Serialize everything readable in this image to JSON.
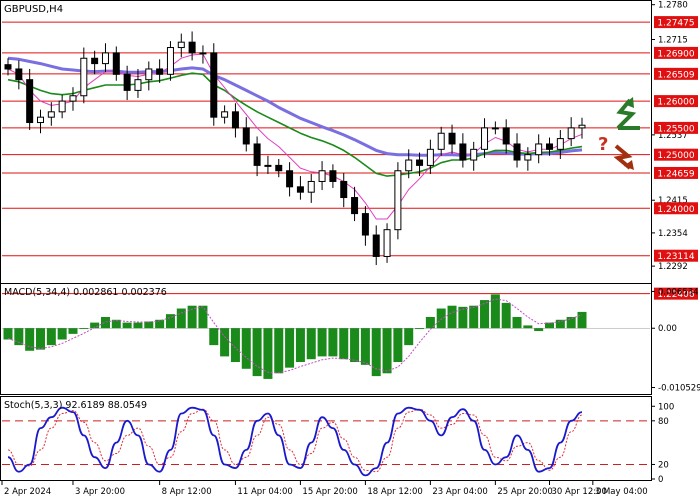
{
  "chart_data": [
    {
      "type": "candlestick",
      "title": "GBPUSD,H4",
      "ylim": [
        1.2225,
        1.2785
      ],
      "price_ticks": [
        1.278,
        1.2715,
        1.2537,
        1.2415,
        1.2354,
        1.2292
      ],
      "level_lines": [
        1.27475,
        1.269,
        1.26509,
        1.26,
        1.255,
        1.25,
        1.24659,
        1.24,
        1.23114,
        1.22406
      ],
      "level_labels": [
        "1.27475",
        "1.26900",
        "1.26509",
        "1.26000",
        "1.25500",
        "1.25000",
        "1.24659",
        "1.24000",
        "1.23114",
        "1.22406"
      ],
      "close_series": [
        1.266,
        1.264,
        1.256,
        1.257,
        1.258,
        1.26,
        1.261,
        1.268,
        1.267,
        1.269,
        1.265,
        1.262,
        1.264,
        1.266,
        1.265,
        1.27,
        1.271,
        1.269,
        1.269,
        1.257,
        1.258,
        1.255,
        1.252,
        1.248,
        1.248,
        1.247,
        1.244,
        1.243,
        1.245,
        1.247,
        1.245,
        1.242,
        1.239,
        1.235,
        1.231,
        1.236,
        1.247,
        1.249,
        1.248,
        1.251,
        1.254,
        1.252,
        1.249,
        1.251,
        1.255,
        1.255,
        1.252,
        1.249,
        1.25,
        1.252,
        1.251,
        1.253,
        1.255,
        1.2555
      ],
      "ma_slow": [
        1.268,
        1.2678,
        1.2674,
        1.267,
        1.2665,
        1.266,
        1.2658,
        1.2656,
        1.2655,
        1.2656,
        1.2656,
        1.2654,
        1.2654,
        1.2655,
        1.2655,
        1.2657,
        1.266,
        1.2662,
        1.266,
        1.2648,
        1.264,
        1.263,
        1.262,
        1.261,
        1.26,
        1.2588,
        1.2578,
        1.2568,
        1.256,
        1.2552,
        1.2545,
        1.2537,
        1.2528,
        1.2518,
        1.2508,
        1.2502,
        1.25,
        1.25,
        1.2499,
        1.2499,
        1.25,
        1.25,
        1.2499,
        1.25,
        1.2502,
        1.2504,
        1.2503,
        1.2501,
        1.2501,
        1.2502,
        1.2502,
        1.2504,
        1.2507,
        1.2509
      ],
      "ma_mid": [
        1.264,
        1.2636,
        1.2628,
        1.262,
        1.2614,
        1.2612,
        1.2614,
        1.262,
        1.2625,
        1.263,
        1.263,
        1.263,
        1.2632,
        1.2636,
        1.2638,
        1.2643,
        1.2648,
        1.2652,
        1.265,
        1.263,
        1.262,
        1.2605,
        1.2592,
        1.258,
        1.257,
        1.256,
        1.255,
        1.254,
        1.2532,
        1.2526,
        1.2518,
        1.2508,
        1.2495,
        1.248,
        1.2465,
        1.246,
        1.2462,
        1.2465,
        1.2468,
        1.2475,
        1.2485,
        1.249,
        1.249,
        1.2494,
        1.2502,
        1.2508,
        1.2508,
        1.2504,
        1.2502,
        1.2504,
        1.2505,
        1.2508,
        1.2512,
        1.2515
      ],
      "ma_fast": [
        1.266,
        1.265,
        1.262,
        1.26,
        1.2592,
        1.2595,
        1.26,
        1.2625,
        1.264,
        1.2655,
        1.2655,
        1.2648,
        1.2646,
        1.265,
        1.2652,
        1.2665,
        1.268,
        1.2686,
        1.2688,
        1.265,
        1.2625,
        1.26,
        1.2575,
        1.255,
        1.253,
        1.2515,
        1.2495,
        1.2475,
        1.2468,
        1.2466,
        1.246,
        1.245,
        1.2435,
        1.241,
        1.238,
        1.238,
        1.2405,
        1.2435,
        1.2455,
        1.2478,
        1.25,
        1.2505,
        1.25,
        1.2502,
        1.252,
        1.2532,
        1.2525,
        1.251,
        1.2505,
        1.251,
        1.251,
        1.2518,
        1.253,
        1.2538
      ]
    },
    {
      "type": "histogram",
      "title": "MACD(5,34,4) 0.002861 0.002376",
      "ticks": [
        0.006534,
        0.0,
        -0.010529
      ],
      "tick_labels": [
        "0.006534",
        "0.00",
        "-0.010529"
      ],
      "ylim": [
        -0.0115,
        0.0075
      ],
      "histogram": [
        -0.002,
        -0.003,
        -0.004,
        -0.0038,
        -0.003,
        -0.002,
        -0.001,
        0.0,
        0.001,
        0.002,
        0.0015,
        0.001,
        0.001,
        0.0012,
        0.0015,
        0.0025,
        0.0035,
        0.004,
        0.004,
        -0.003,
        -0.005,
        -0.006,
        -0.0072,
        -0.0085,
        -0.009,
        -0.008,
        -0.007,
        -0.006,
        -0.0055,
        -0.005,
        -0.005,
        -0.0055,
        -0.006,
        -0.0065,
        -0.0085,
        -0.008,
        -0.006,
        -0.003,
        0.0,
        0.002,
        0.0035,
        0.004,
        0.0038,
        0.004,
        0.005,
        0.006,
        0.0045,
        0.002,
        0.0005,
        -0.0005,
        0.001,
        0.0015,
        0.002,
        0.0029
      ],
      "signal": [
        -0.0018,
        -0.0025,
        -0.0033,
        -0.0036,
        -0.0033,
        -0.0027,
        -0.0018,
        -0.0009,
        0.0001,
        0.0011,
        0.0014,
        0.0012,
        0.0011,
        0.0011,
        0.0013,
        0.0019,
        0.0027,
        0.0034,
        0.0038,
        0.001,
        -0.0015,
        -0.0035,
        -0.0052,
        -0.0068,
        -0.0078,
        -0.0079,
        -0.0075,
        -0.0068,
        -0.0062,
        -0.0056,
        -0.0053,
        -0.0054,
        -0.0057,
        -0.0061,
        -0.0072,
        -0.0076,
        -0.0069,
        -0.005,
        -0.0025,
        -0.0002,
        0.0016,
        0.0028,
        0.0034,
        0.0037,
        0.0044,
        0.0052,
        0.0049,
        0.0035,
        0.002,
        0.0008,
        0.0009,
        0.0012,
        0.0017,
        0.0024
      ]
    },
    {
      "type": "line",
      "title": "Stoch(5,3,3) 92.6189 88.0549",
      "ylim": [
        0,
        110
      ],
      "ticks": [
        100,
        80,
        20,
        0
      ],
      "tick_labels": [
        "100",
        "80",
        "20",
        "0"
      ],
      "levels": [
        80,
        20
      ],
      "k": [
        30,
        10,
        20,
        70,
        85,
        98,
        92,
        60,
        30,
        15,
        50,
        80,
        60,
        20,
        10,
        40,
        90,
        98,
        95,
        60,
        20,
        15,
        40,
        80,
        90,
        60,
        20,
        15,
        50,
        85,
        70,
        40,
        20,
        5,
        15,
        50,
        90,
        98,
        95,
        80,
        60,
        85,
        96,
        80,
        40,
        20,
        30,
        60,
        40,
        10,
        15,
        50,
        80,
        92
      ],
      "d": [
        40,
        20,
        18,
        40,
        70,
        90,
        94,
        78,
        50,
        25,
        35,
        60,
        70,
        45,
        20,
        30,
        65,
        90,
        96,
        80,
        40,
        20,
        30,
        60,
        85,
        75,
        40,
        20,
        35,
        70,
        78,
        55,
        30,
        12,
        10,
        30,
        70,
        92,
        96,
        88,
        70,
        75,
        90,
        88,
        60,
        30,
        25,
        45,
        50,
        25,
        12,
        30,
        65,
        88
      ]
    }
  ],
  "x_axis": {
    "labels": [
      "2 Apr 2024",
      "3 Apr 20:00",
      "8 Apr 12:00",
      "11 Apr 04:00",
      "15 Apr 20:00",
      "18 Apr 12:00",
      "23 Apr 04:00",
      "25 Apr 20:00",
      "30 Apr 12:00",
      "3 May 04:00"
    ],
    "label_index": [
      0,
      6,
      14,
      21,
      27,
      33,
      39,
      45,
      50,
      54
    ]
  },
  "annotations": {
    "question_mark": "?"
  },
  "colors": {
    "level_line": "#e01010",
    "label_bg": "#e01010",
    "candle": "#000000",
    "ma_slow": "#7a6fe0",
    "ma_mid": "#1a8a1a",
    "ma_fast": "#e040c0",
    "macd_bar": "#1a8a1a",
    "macd_signal": "#c050c0",
    "stoch_k": "#1a1acc",
    "stoch_d": "#e03040",
    "arrow_up": "#2a7a2a",
    "arrow_down": "#a03010",
    "question": "#c83020"
  }
}
